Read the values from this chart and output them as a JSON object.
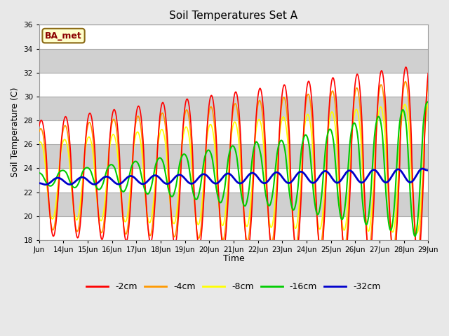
{
  "title": "Soil Temperatures Set A",
  "xlabel": "Time",
  "ylabel": "Soil Temperature (C)",
  "ylim": [
    18,
    36
  ],
  "yticks": [
    18,
    20,
    22,
    24,
    26,
    28,
    30,
    32,
    34,
    36
  ],
  "label_text": "BA_met",
  "line_colors": [
    "#ff0000",
    "#ff9900",
    "#ffff00",
    "#00cc00",
    "#0000cc"
  ],
  "line_labels": [
    "-2cm",
    "-4cm",
    "-8cm",
    "-16cm",
    "-32cm"
  ],
  "line_widths": [
    1.2,
    1.2,
    1.2,
    1.5,
    2.0
  ],
  "bg_color": "#e8e8e8",
  "n_days": 16,
  "start_day": 13,
  "samples_per_day": 48
}
